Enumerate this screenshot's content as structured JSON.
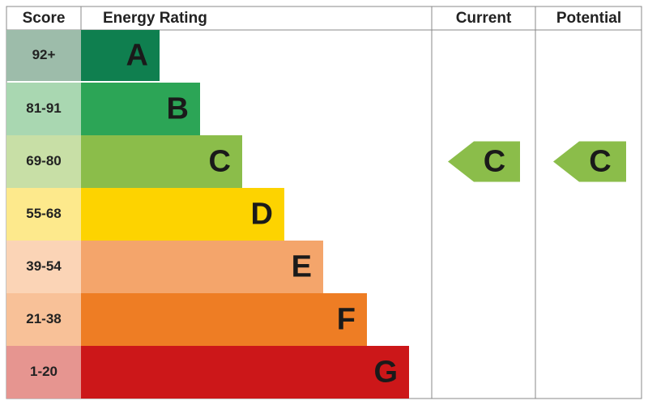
{
  "header": {
    "score": "Score",
    "rating": "Energy Rating",
    "current": "Current",
    "potential": "Potential"
  },
  "rows": [
    {
      "score": "92+",
      "letter": "A"
    },
    {
      "score": "81-91",
      "letter": "B"
    },
    {
      "score": "69-80",
      "letter": "C"
    },
    {
      "score": "55-68",
      "letter": "D"
    },
    {
      "score": "39-54",
      "letter": "E"
    },
    {
      "score": "21-38",
      "letter": "F"
    },
    {
      "score": "1-20",
      "letter": "G"
    }
  ],
  "current": "C",
  "potential": "C"
}
